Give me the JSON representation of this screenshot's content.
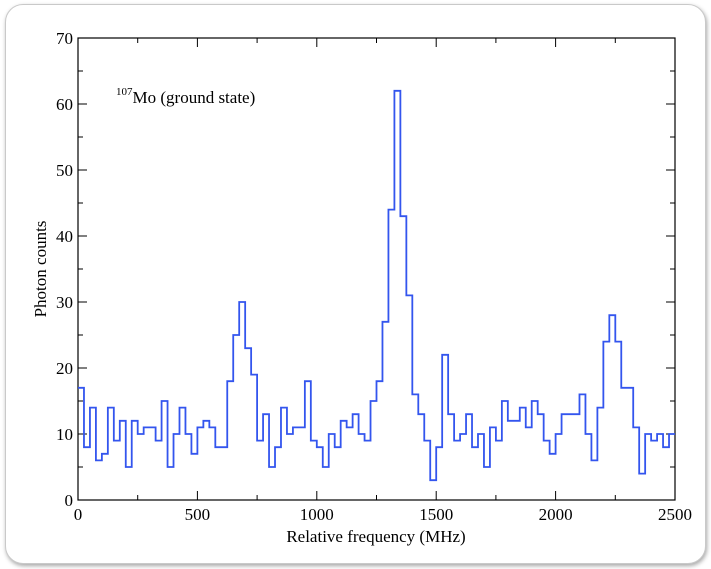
{
  "chart_data": {
    "type": "line",
    "style": "step",
    "title": "",
    "annotation": {
      "superscript": "107",
      "text": "Mo (ground state)"
    },
    "xlabel": "Relative frequency (MHz)",
    "ylabel": "Photon counts",
    "xlim": [
      0,
      2500
    ],
    "ylim": [
      0,
      70
    ],
    "xticks": [
      0,
      500,
      1000,
      1500,
      2000,
      2500
    ],
    "xtick_labels": [
      "0",
      "500",
      "1000",
      "1500",
      "2000",
      "2500"
    ],
    "yticks": [
      0,
      10,
      20,
      30,
      40,
      50,
      60,
      70
    ],
    "ytick_labels": [
      "0",
      "10",
      "20",
      "30",
      "40",
      "50",
      "60",
      "70"
    ],
    "grid": false,
    "line_color": "#3355ee",
    "bin_width": 25,
    "x": [
      0,
      25,
      50,
      75,
      100,
      125,
      150,
      175,
      200,
      225,
      250,
      275,
      300,
      325,
      350,
      375,
      400,
      425,
      450,
      475,
      500,
      525,
      550,
      575,
      600,
      625,
      650,
      675,
      700,
      725,
      750,
      775,
      800,
      825,
      850,
      875,
      900,
      925,
      950,
      975,
      1000,
      1025,
      1050,
      1075,
      1100,
      1125,
      1150,
      1175,
      1200,
      1225,
      1250,
      1275,
      1300,
      1325,
      1350,
      1375,
      1400,
      1425,
      1450,
      1475,
      1500,
      1525,
      1550,
      1575,
      1600,
      1625,
      1650,
      1675,
      1700,
      1725,
      1750,
      1775,
      1800,
      1825,
      1850,
      1875,
      1900,
      1925,
      1950,
      1975,
      2000,
      2025,
      2050,
      2075,
      2100,
      2125,
      2150,
      2175,
      2200,
      2225,
      2250,
      2275,
      2300,
      2325,
      2350,
      2375,
      2400,
      2425,
      2450,
      2475
    ],
    "values": [
      17,
      8,
      14,
      6,
      7,
      14,
      9,
      12,
      5,
      12,
      10,
      11,
      11,
      9,
      15,
      5,
      10,
      14,
      10,
      7,
      11,
      12,
      11,
      8,
      8,
      18,
      25,
      30,
      23,
      19,
      9,
      13,
      5,
      8,
      14,
      10,
      11,
      11,
      18,
      9,
      8,
      5,
      10,
      8,
      12,
      11,
      13,
      10,
      9,
      15,
      18,
      27,
      44,
      62,
      43,
      31,
      16,
      13,
      9,
      3,
      8,
      22,
      13,
      9,
      10,
      13,
      8,
      10,
      5,
      11,
      9,
      15,
      12,
      12,
      14,
      11,
      15,
      13,
      9,
      7,
      10,
      13,
      13,
      13,
      16,
      10,
      6,
      14,
      24,
      28,
      24,
      17,
      17,
      11,
      4,
      10,
      9,
      10,
      8,
      10
    ]
  }
}
